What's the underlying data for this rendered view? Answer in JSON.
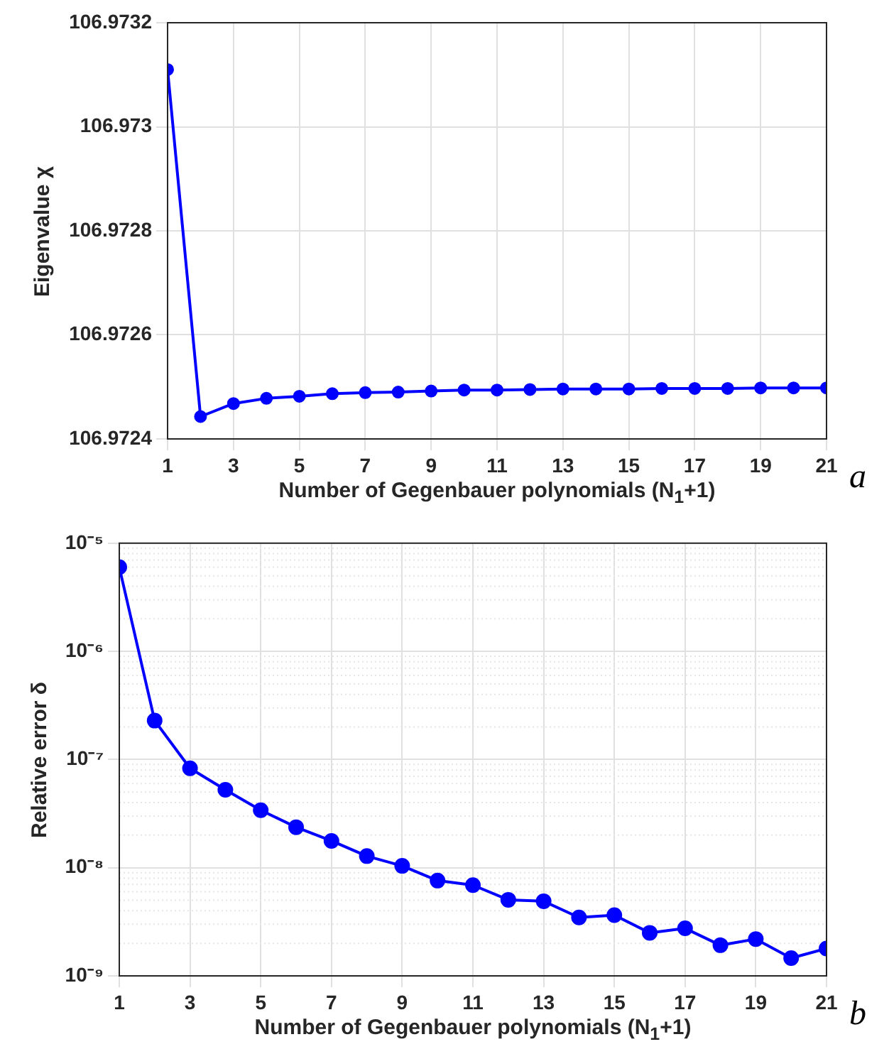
{
  "chart_data": [
    {
      "type": "line",
      "xlabel": "Number of Gegenbauer polynomials (N$_{1}$+1)",
      "ylabel": "Eigenvalue χ",
      "x": [
        1,
        2,
        3,
        4,
        5,
        6,
        7,
        8,
        9,
        10,
        11,
        12,
        13,
        14,
        15,
        16,
        17,
        18,
        19,
        20,
        21
      ],
      "series": [
        {
          "color": "#0000ff",
          "values": [
            106.97311,
            106.972443,
            106.972468,
            106.972478,
            106.972482,
            106.972487,
            106.972489,
            106.97249,
            106.972492,
            106.972494,
            106.972494,
            106.972495,
            106.972496,
            106.972496,
            106.972496,
            106.972497,
            106.972497,
            106.972497,
            106.972498,
            106.972498,
            106.972498
          ]
        }
      ],
      "xlim": [
        1,
        21
      ],
      "xticks": [
        1,
        3,
        5,
        7,
        9,
        11,
        13,
        15,
        17,
        19,
        21
      ],
      "ylim": [
        106.9724,
        106.9732
      ],
      "yticks": [
        106.9724,
        106.9726,
        106.9728,
        106.973,
        106.9732
      ],
      "grid": true,
      "marker": "circle",
      "annotations": [
        "a"
      ]
    },
    {
      "type": "line",
      "xlabel": "Number of Gegenbauer polynomials (N$_{1}$+1)",
      "ylabel": "Relative error δ",
      "x": [
        1,
        2,
        3,
        4,
        5,
        6,
        7,
        8,
        9,
        10,
        11,
        12,
        13,
        14,
        15,
        16,
        17,
        18,
        19,
        20,
        21
      ],
      "series": [
        {
          "color": "#0000ff",
          "values": [
            6e-06,
            2.29e-07,
            8.3e-08,
            5.25e-08,
            3.4e-08,
            2.37e-08,
            1.77e-08,
            1.28e-08,
            1.04e-08,
            7.6e-09,
            6.9e-09,
            5.05e-09,
            4.9e-09,
            3.47e-09,
            3.64e-09,
            2.5e-09,
            2.75e-09,
            1.92e-09,
            2.19e-09,
            1.46e-09,
            1.79e-09
          ]
        }
      ],
      "xlim": [
        1,
        21
      ],
      "xticks": [
        1,
        3,
        5,
        7,
        9,
        11,
        13,
        15,
        17,
        19,
        21
      ],
      "ylim": [
        1e-09,
        1e-05
      ],
      "yticks": [
        {
          "value": 1e-09,
          "label": "10⁻⁹"
        },
        {
          "value": 1e-08,
          "label": "10⁻⁸"
        },
        {
          "value": 1e-07,
          "label": "10⁻⁷"
        },
        {
          "value": 1e-06,
          "label": "10⁻⁶"
        },
        {
          "value": 1e-05,
          "label": "10⁻⁵"
        }
      ],
      "log": "y",
      "grid": true,
      "marker": "circle",
      "annotations": [
        "b"
      ]
    }
  ]
}
